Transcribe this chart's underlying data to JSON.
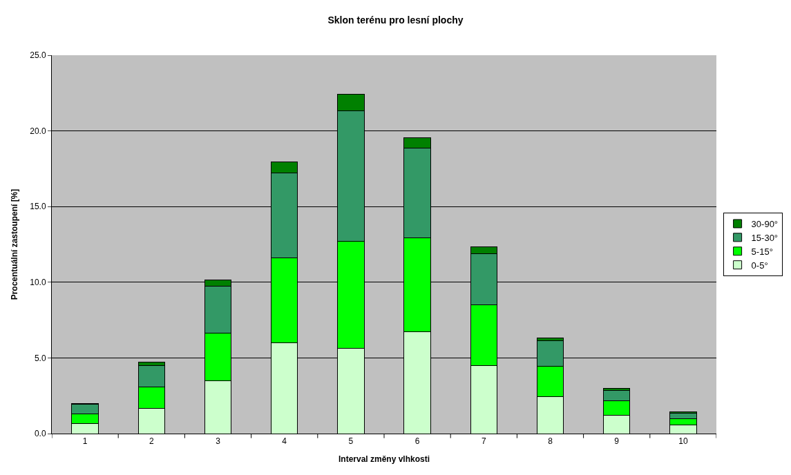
{
  "chart_data": {
    "type": "bar",
    "title": "Sklon terénu pro lesní plochy",
    "xlabel": "Interval změny vlhkosti",
    "ylabel": "Procentuální zastoupení [%]",
    "categories": [
      "1",
      "2",
      "3",
      "4",
      "5",
      "6",
      "7",
      "8",
      "9",
      "10"
    ],
    "stacked": true,
    "series": [
      {
        "name": "0-5°",
        "color": "#ccffcc",
        "values": [
          0.65,
          1.65,
          3.5,
          6.0,
          5.65,
          6.75,
          4.5,
          2.45,
          1.2,
          0.55
        ]
      },
      {
        "name": "5-15°",
        "color": "#00ff00",
        "values": [
          0.65,
          1.45,
          3.15,
          5.6,
          7.05,
          6.2,
          4.0,
          2.0,
          0.95,
          0.45
        ]
      },
      {
        "name": "15-30°",
        "color": "#339966",
        "values": [
          0.65,
          1.4,
          3.1,
          5.6,
          8.65,
          5.9,
          3.4,
          1.7,
          0.7,
          0.35
        ]
      },
      {
        "name": "30-90°",
        "color": "#008000",
        "values": [
          0.05,
          0.2,
          0.4,
          0.75,
          1.05,
          0.7,
          0.45,
          0.15,
          0.15,
          0.1
        ]
      }
    ],
    "ylim": [
      0,
      25
    ],
    "yticks": [
      {
        "value": 0,
        "label": "0.0"
      },
      {
        "value": 5,
        "label": "5.0"
      },
      {
        "value": 10,
        "label": "10.0"
      },
      {
        "value": 15,
        "label": "15.0"
      },
      {
        "value": 20,
        "label": "20.0"
      },
      {
        "value": 25,
        "label": "25.0"
      }
    ],
    "grid": "y",
    "legend": "right"
  }
}
